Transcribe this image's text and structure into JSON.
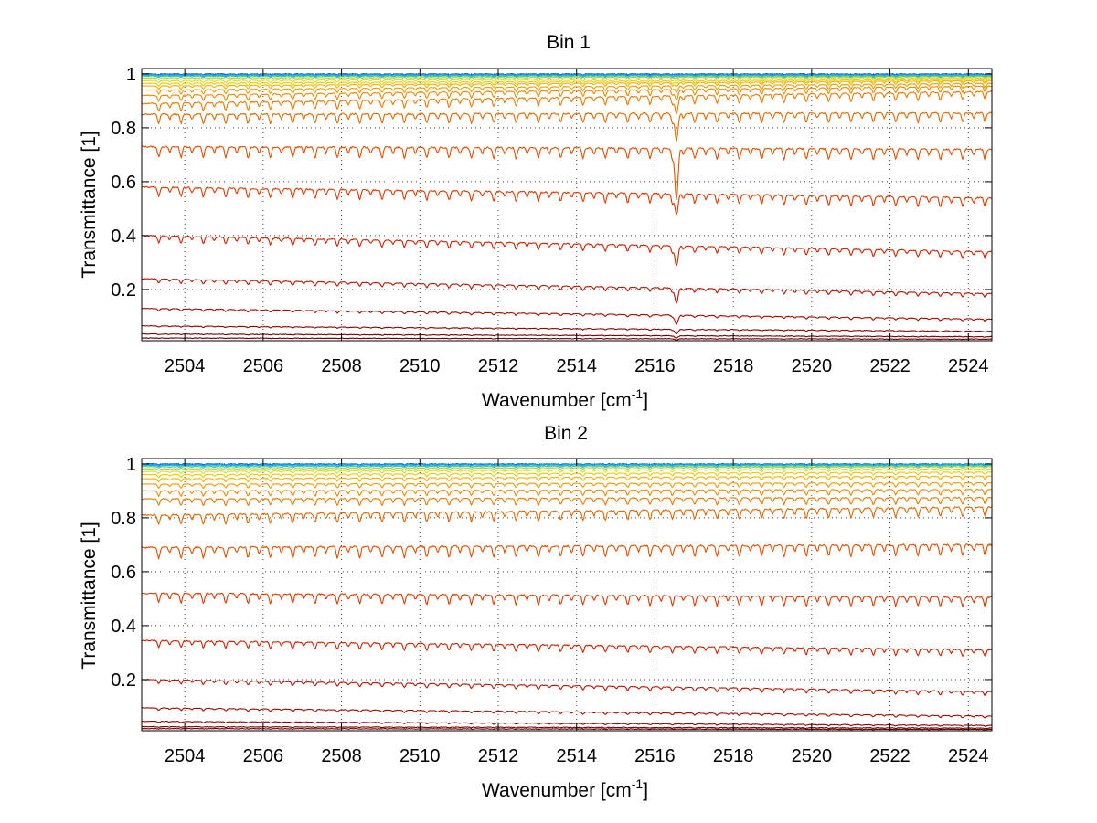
{
  "chart_data": [
    {
      "type": "line",
      "title": "Bin 1",
      "xlabel": "Wavenumber [cm",
      "xlabel_sup": "-1",
      "xlabel_tail": "]",
      "ylabel": "Transmittance [1]",
      "xlim": [
        2502.9,
        2524.6
      ],
      "ylim": [
        0.01,
        1.02
      ],
      "xticks": [
        2504,
        2506,
        2508,
        2510,
        2512,
        2514,
        2516,
        2518,
        2520,
        2522,
        2524
      ],
      "xtick_labels": [
        "2504",
        "2506",
        "2508",
        "2510",
        "2512",
        "2514",
        "2516",
        "2518",
        "2520",
        "2522",
        "2524"
      ],
      "yticks": [
        0.2,
        0.4,
        0.6,
        0.8,
        1.0
      ],
      "ytick_labels": [
        "0.2",
        "0.4",
        "0.6",
        "0.8",
        "1"
      ],
      "grid": true,
      "line_spacing_cm-1": 0.57,
      "strong_line_at": 2516.55,
      "series": [
        {
          "start": 1.0,
          "end": 1.0,
          "depth": 0.003,
          "color": "#0050c8"
        },
        {
          "start": 0.998,
          "end": 0.998,
          "depth": 0.003,
          "color": "#1e90ff"
        },
        {
          "start": 0.995,
          "end": 0.995,
          "depth": 0.004,
          "color": "#10b8d8"
        },
        {
          "start": 0.992,
          "end": 0.993,
          "depth": 0.005,
          "color": "#40c890"
        },
        {
          "start": 0.985,
          "end": 0.99,
          "depth": 0.006,
          "color": "#a8d040"
        },
        {
          "start": 0.975,
          "end": 0.985,
          "depth": 0.008,
          "color": "#e0d820"
        },
        {
          "start": 0.965,
          "end": 0.98,
          "depth": 0.01,
          "color": "#f2c800"
        },
        {
          "start": 0.955,
          "end": 0.975,
          "depth": 0.012,
          "color": "#f5b000"
        },
        {
          "start": 0.94,
          "end": 0.965,
          "depth": 0.016,
          "color": "#f09a00"
        },
        {
          "start": 0.92,
          "end": 0.955,
          "depth": 0.022,
          "color": "#ec8a00"
        },
        {
          "start": 0.89,
          "end": 0.935,
          "depth": 0.03,
          "color": "#e87a00"
        },
        {
          "start": 0.85,
          "end": 0.855,
          "depth": 0.035,
          "color": "#e06800"
        },
        {
          "start": 0.73,
          "end": 0.72,
          "depth": 0.04,
          "color": "#e05000"
        },
        {
          "start": 0.58,
          "end": 0.54,
          "depth": 0.035,
          "color": "#dc3a00"
        },
        {
          "start": 0.4,
          "end": 0.34,
          "depth": 0.025,
          "color": "#cc2200"
        },
        {
          "start": 0.24,
          "end": 0.185,
          "depth": 0.015,
          "color": "#b81400"
        },
        {
          "start": 0.13,
          "end": 0.09,
          "depth": 0.008,
          "color": "#a00c00"
        },
        {
          "start": 0.065,
          "end": 0.045,
          "depth": 0.004,
          "color": "#8c0600"
        },
        {
          "start": 0.035,
          "end": 0.025,
          "depth": 0.002,
          "color": "#780000"
        },
        {
          "start": 0.02,
          "end": 0.016,
          "depth": 0.001,
          "color": "#640000"
        }
      ]
    },
    {
      "type": "line",
      "title": "Bin 2",
      "xlabel": "Wavenumber [cm",
      "xlabel_sup": "-1",
      "xlabel_tail": "]",
      "ylabel": "Transmittance [1]",
      "xlim": [
        2502.9,
        2524.6
      ],
      "ylim": [
        0.01,
        1.02
      ],
      "xticks": [
        2504,
        2506,
        2508,
        2510,
        2512,
        2514,
        2516,
        2518,
        2520,
        2522,
        2524
      ],
      "xtick_labels": [
        "2504",
        "2506",
        "2508",
        "2510",
        "2512",
        "2514",
        "2516",
        "2518",
        "2520",
        "2522",
        "2524"
      ],
      "yticks": [
        0.2,
        0.4,
        0.6,
        0.8,
        1.0
      ],
      "ytick_labels": [
        "0.2",
        "0.4",
        "0.6",
        "0.8",
        "1"
      ],
      "grid": true,
      "line_spacing_cm-1": 0.57,
      "strong_line_at": null,
      "series": [
        {
          "start": 1.0,
          "end": 1.0,
          "depth": 0.003,
          "color": "#0050c8"
        },
        {
          "start": 0.998,
          "end": 0.999,
          "depth": 0.003,
          "color": "#1e90ff"
        },
        {
          "start": 0.995,
          "end": 0.997,
          "depth": 0.004,
          "color": "#10b8d8"
        },
        {
          "start": 0.99,
          "end": 0.994,
          "depth": 0.005,
          "color": "#40c890"
        },
        {
          "start": 0.982,
          "end": 0.99,
          "depth": 0.006,
          "color": "#a8d040"
        },
        {
          "start": 0.972,
          "end": 0.982,
          "depth": 0.008,
          "color": "#e0d820"
        },
        {
          "start": 0.96,
          "end": 0.97,
          "depth": 0.01,
          "color": "#f2c800"
        },
        {
          "start": 0.945,
          "end": 0.955,
          "depth": 0.012,
          "color": "#f5b000"
        },
        {
          "start": 0.925,
          "end": 0.93,
          "depth": 0.015,
          "color": "#f09a00"
        },
        {
          "start": 0.9,
          "end": 0.905,
          "depth": 0.02,
          "color": "#ec8a00"
        },
        {
          "start": 0.87,
          "end": 0.875,
          "depth": 0.025,
          "color": "#e87a00"
        },
        {
          "start": 0.81,
          "end": 0.84,
          "depth": 0.035,
          "color": "#e06800"
        },
        {
          "start": 0.69,
          "end": 0.7,
          "depth": 0.04,
          "color": "#e05000"
        },
        {
          "start": 0.52,
          "end": 0.505,
          "depth": 0.035,
          "color": "#dc3a00"
        },
        {
          "start": 0.345,
          "end": 0.31,
          "depth": 0.025,
          "color": "#cc2200"
        },
        {
          "start": 0.2,
          "end": 0.155,
          "depth": 0.015,
          "color": "#b81400"
        },
        {
          "start": 0.095,
          "end": 0.065,
          "depth": 0.008,
          "color": "#a00c00"
        },
        {
          "start": 0.045,
          "end": 0.03,
          "depth": 0.004,
          "color": "#8c0600"
        },
        {
          "start": 0.025,
          "end": 0.02,
          "depth": 0.002,
          "color": "#780000"
        },
        {
          "start": 0.018,
          "end": 0.015,
          "depth": 0.001,
          "color": "#640000"
        }
      ]
    }
  ]
}
